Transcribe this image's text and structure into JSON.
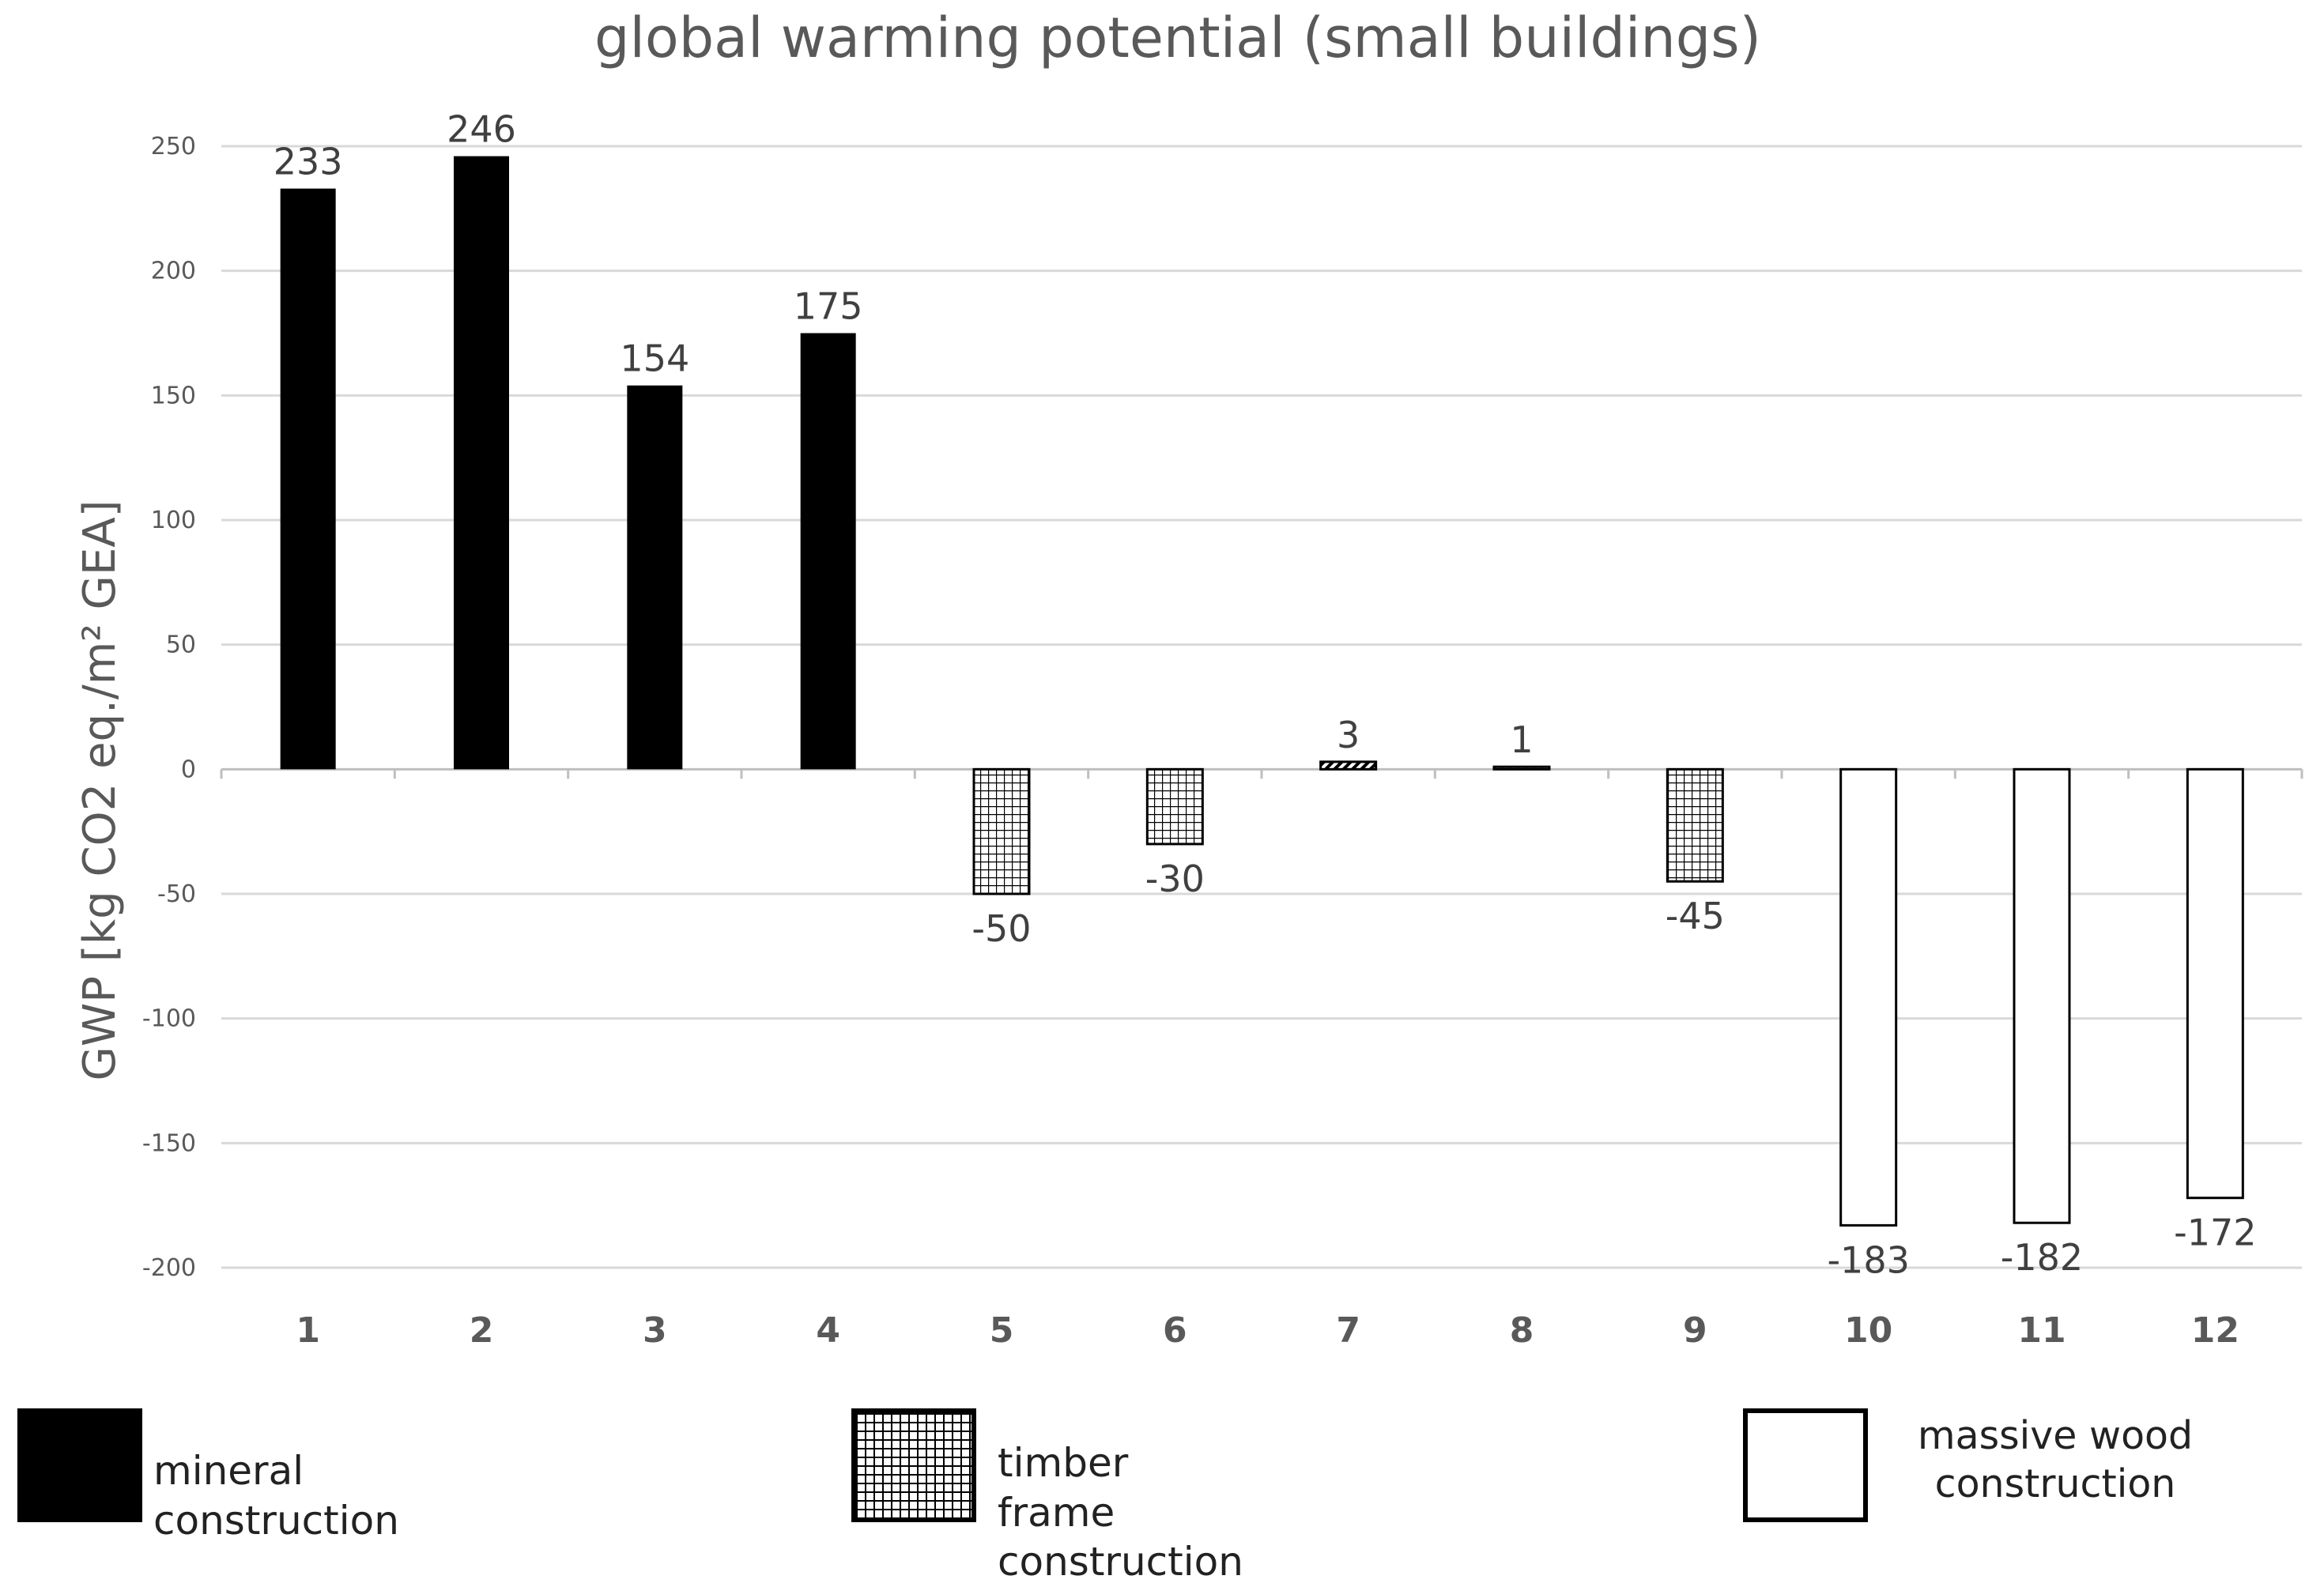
{
  "chart_data": {
    "type": "bar",
    "title": "global warming potential (small buildings)",
    "ylabel": "GWP [kg CO2 eq./m² GEA]",
    "xlabel": "",
    "ylim": [
      -200,
      250
    ],
    "yticks": [
      250,
      200,
      150,
      100,
      50,
      0,
      -50,
      -100,
      -150,
      -200
    ],
    "grid": true,
    "categories": [
      "1",
      "2",
      "3",
      "4",
      "5",
      "6",
      "7",
      "8",
      "9",
      "10",
      "11",
      "12"
    ],
    "values": [
      233,
      246,
      154,
      175,
      -50,
      -30,
      3,
      1,
      -45,
      -183,
      -182,
      -172
    ],
    "data_labels": [
      "233",
      "246",
      "154",
      "175",
      "-50",
      "-30",
      "3",
      "1",
      "-45",
      "-183",
      "-182",
      "-172"
    ],
    "groups": [
      "mineral",
      "mineral",
      "mineral",
      "mineral",
      "timber",
      "timber",
      "timber",
      "timber",
      "timber",
      "massive",
      "massive",
      "massive"
    ],
    "legend": [
      {
        "key": "mineral",
        "label": "mineral construction",
        "style": "solid"
      },
      {
        "key": "timber",
        "label": "timber frame construction",
        "style": "grid"
      },
      {
        "key": "massive",
        "label": "massive wood construction",
        "style": "hollow"
      }
    ],
    "legend_position": "bottom"
  },
  "colors": {
    "mineral": "#000000",
    "timber_line": "#000000",
    "massive_fill": "#ffffff",
    "gridline": "#d9d9d9",
    "axis_text": "#595959"
  }
}
